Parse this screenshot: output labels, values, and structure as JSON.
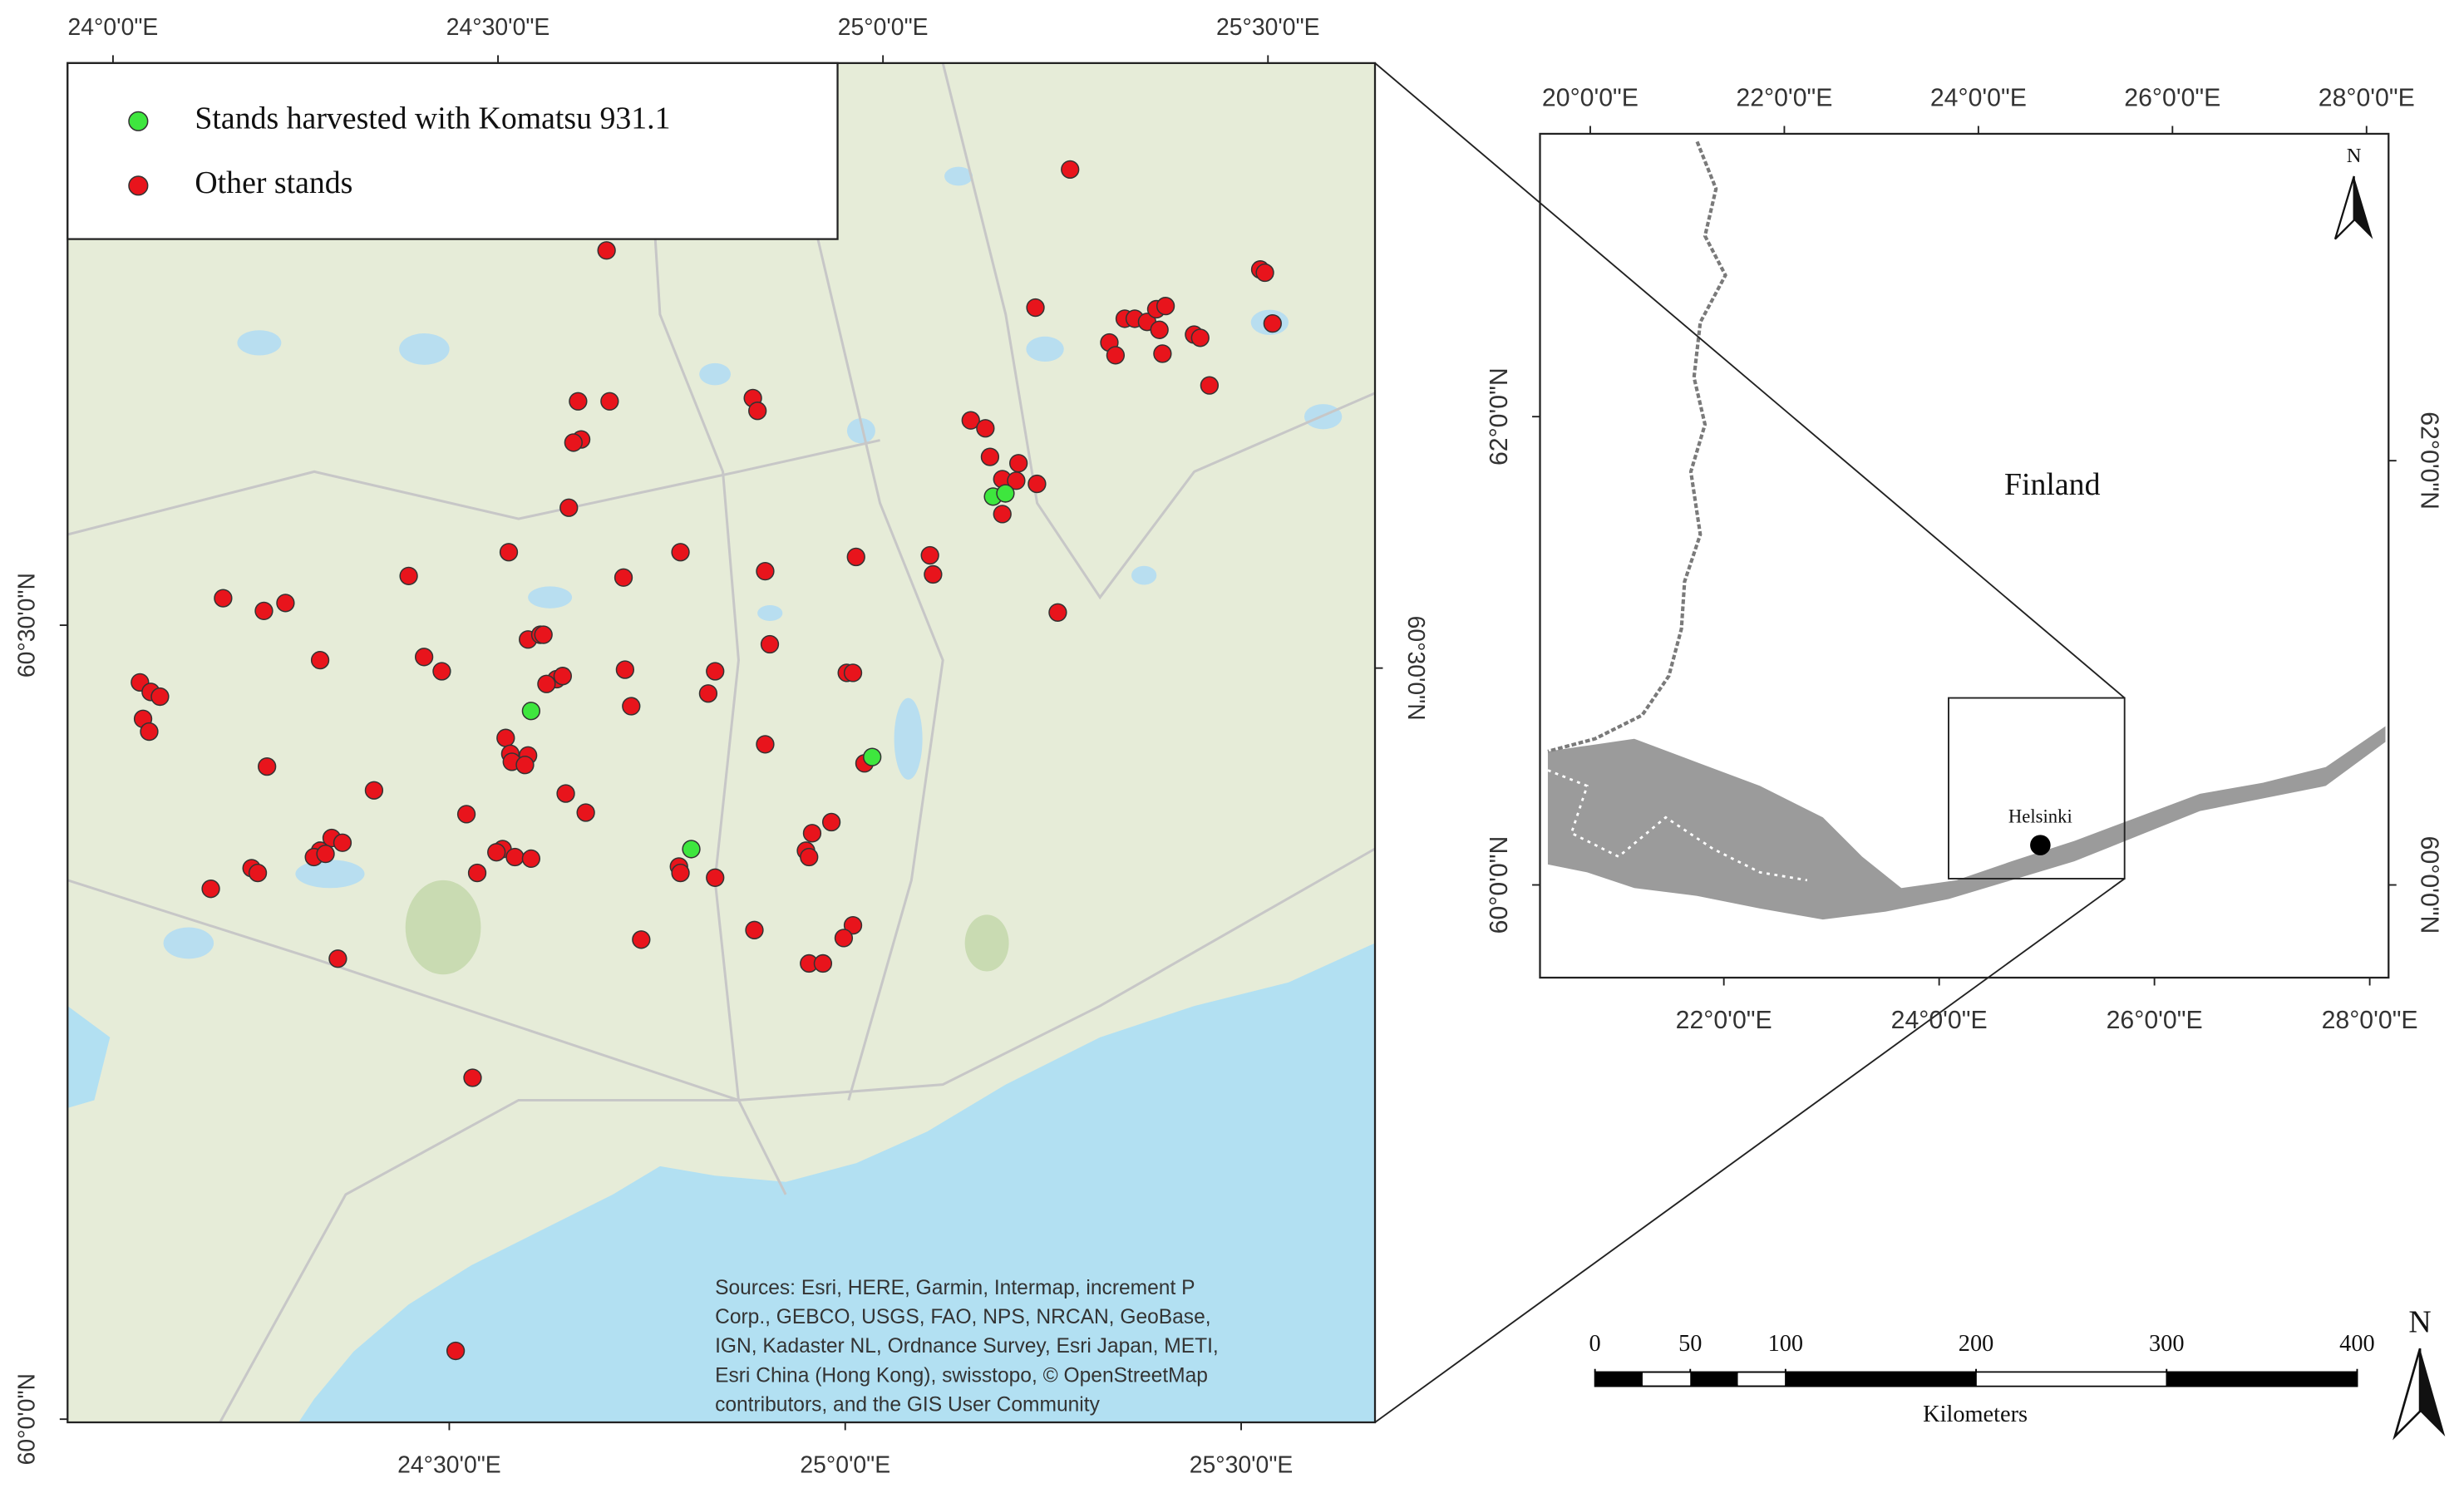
{
  "chart_data": [
    {
      "type": "scatter",
      "legend": "top-left",
      "xlim_top": [
        23.941,
        25.639
      ],
      "xticks_top": [
        {
          "value": 24,
          "label": "24°0'0\"E"
        },
        {
          "value": 24.5,
          "label": "24°30'0\"E"
        },
        {
          "value": 25,
          "label": "25°0'0\"E"
        },
        {
          "value": 25.5,
          "label": "25°30'0\"E"
        }
      ],
      "xlim_bottom": [
        24.018,
        25.669
      ],
      "xticks_bottom": [
        {
          "value": 24.5,
          "label": "24°30'0\"E"
        },
        {
          "value": 25,
          "label": "25°0'0\"E"
        },
        {
          "value": 25.5,
          "label": "25°30'0\"E"
        }
      ],
      "ylim_left": [
        59.998,
        60.854
      ],
      "yticks_left": [
        {
          "value": 60.5,
          "label": "60°30'0\"N"
        },
        {
          "value": 60,
          "label": "60°0'0\"N"
        }
      ],
      "ylim_right": [
        60.025,
        60.881
      ],
      "yticks_right": [
        {
          "value": 60.5,
          "label": "60°30'0\"N"
        }
      ],
      "series": [
        {
          "name": "Stands harvested with Komatsu 931.1",
          "color": "#3ee63e",
          "x": [
            25.143,
            25.159,
            24.543,
            24.751,
            24.986
          ],
          "values": [
            60.581,
            60.583,
            60.446,
            60.359,
            60.417
          ]
        },
        {
          "name": "Other stands",
          "color": "#e8141c",
          "x": [
            25.243,
            24.641,
            25.49,
            25.496,
            25.198,
            25.506,
            25.314,
            25.327,
            25.343,
            25.355,
            25.367,
            25.359,
            25.294,
            25.302,
            25.404,
            25.412,
            25.363,
            25.424,
            24.831,
            24.837,
            24.604,
            24.645,
            24.608,
            24.598,
            25.114,
            25.133,
            25.139,
            25.176,
            25.2,
            25.155,
            25.173,
            25.155,
            24.592,
            24.514,
            24.737,
            25.061,
            25.065,
            24.384,
            24.663,
            24.847,
            24.143,
            24.196,
            24.224,
            24.965,
            25.227,
            24.539,
            24.555,
            24.559,
            24.853,
            24.269,
            24.404,
            24.427,
            24.576,
            24.584,
            24.563,
            24.665,
            24.782,
            24.773,
            24.953,
            24.961,
            24.035,
            24.049,
            24.061,
            24.039,
            24.047,
            24.673,
            24.51,
            24.516,
            24.539,
            24.518,
            24.535,
            24.847,
            24.2,
            24.976,
            24.339,
            24.588,
            24.614,
            24.459,
            24.933,
            24.908,
            24.9,
            24.904,
            24.284,
            24.298,
            24.269,
            24.261,
            24.276,
            24.506,
            24.498,
            24.522,
            24.543,
            24.735,
            24.737,
            24.782,
            24.18,
            24.188,
            24.127,
            24.473,
            24.961,
            24.949,
            24.833,
            24.686,
            24.292,
            24.904,
            24.922,
            24.467,
            24.445
          ],
          "values": [
            60.787,
            60.736,
            60.724,
            60.722,
            60.7,
            60.69,
            60.693,
            60.693,
            60.691,
            60.699,
            60.701,
            60.686,
            60.678,
            60.67,
            60.683,
            60.681,
            60.671,
            60.651,
            60.643,
            60.635,
            60.641,
            60.641,
            60.617,
            60.615,
            60.629,
            60.624,
            60.606,
            60.602,
            60.589,
            60.592,
            60.591,
            60.57,
            60.574,
            60.546,
            60.546,
            60.544,
            60.532,
            60.531,
            60.53,
            60.534,
            60.517,
            60.509,
            60.514,
            60.543,
            60.508,
            60.491,
            60.494,
            60.494,
            60.488,
            60.478,
            60.48,
            60.471,
            60.466,
            60.468,
            60.463,
            60.472,
            60.471,
            60.457,
            60.47,
            60.47,
            60.464,
            60.458,
            60.455,
            60.441,
            60.433,
            60.449,
            60.429,
            60.419,
            60.418,
            60.414,
            60.412,
            60.425,
            60.411,
            60.413,
            60.396,
            60.394,
            60.382,
            60.381,
            60.376,
            60.369,
            60.358,
            60.354,
            60.366,
            60.363,
            60.358,
            60.354,
            60.356,
            60.359,
            60.357,
            60.354,
            60.353,
            60.348,
            60.344,
            60.341,
            60.347,
            60.344,
            60.334,
            60.344,
            60.311,
            60.303,
            60.308,
            60.302,
            60.29,
            60.287,
            60.287,
            60.215,
            60.043
          ]
        }
      ],
      "sources": [
        "Sources: Esri, HERE, Garmin, Intermap, increment P",
        "Corp., GEBCO, USGS, FAO, NPS, NRCAN, GeoBase,",
        "IGN, Kadaster NL, Ordnance Survey, Esri Japan, METI,",
        "Esri China (Hong Kong), swisstopo, © OpenStreetMap",
        "contributors, and the GIS User Community"
      ]
    },
    {
      "type": "map",
      "label": "Finland",
      "city": {
        "name": "Helsinki",
        "x": 24.94,
        "y": 60.17
      },
      "xlim_top": [
        19.482,
        28.227
      ],
      "xticks_top": [
        {
          "value": 20,
          "label": "20°0'0\"E"
        },
        {
          "value": 22,
          "label": "22°0'0\"E"
        },
        {
          "value": 24,
          "label": "24°0'0\"E"
        },
        {
          "value": 26,
          "label": "26°0'0\"E"
        },
        {
          "value": 28,
          "label": "28°0'0\"E"
        }
      ],
      "xlim_bottom": [
        20.292,
        28.175
      ],
      "xticks_bottom": [
        {
          "value": 22,
          "label": "22°0'0\"E"
        },
        {
          "value": 24,
          "label": "24°0'0\"E"
        },
        {
          "value": 26,
          "label": "26°0'0\"E"
        },
        {
          "value": 28,
          "label": "28°0'0\"E"
        }
      ],
      "ylim_left": [
        59.604,
        63.208
      ],
      "yticks_left": [
        {
          "value": 62,
          "label": "62°0'0\"N"
        },
        {
          "value": 60,
          "label": "60°0'0\"N"
        }
      ],
      "ylim_right": [
        59.563,
        63.541
      ],
      "yticks_right": [
        {
          "value": 62,
          "label": "62°0'0\"N"
        },
        {
          "value": 60,
          "label": "60°0'0\"N"
        }
      ],
      "north": "N",
      "scalebar": {
        "xlim": [
          0,
          400
        ],
        "ticks": [
          0,
          50,
          100,
          200,
          300,
          400
        ],
        "label": "Kilometers",
        "north": "N"
      }
    }
  ]
}
